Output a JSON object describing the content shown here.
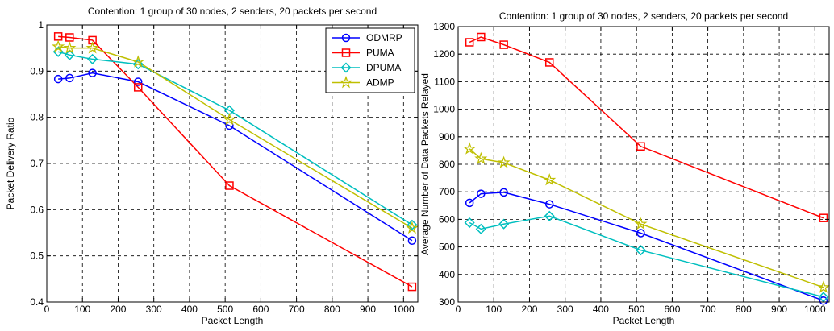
{
  "chart_data": [
    {
      "type": "line",
      "title": "Contention: 1 group of 30 nodes, 2 senders, 20 packets per second",
      "xlabel": "Packet Length",
      "ylabel": "Packet Delivery Ratio",
      "xlim": [
        0,
        1040
      ],
      "ylim": [
        0.4,
        1.0
      ],
      "xticks": [
        0,
        100,
        200,
        300,
        400,
        500,
        600,
        700,
        800,
        900,
        1000
      ],
      "yticks": [
        0.4,
        0.5,
        0.6,
        0.7,
        0.8,
        0.9,
        1.0
      ],
      "ytick_labels": [
        "0.4",
        "0.5",
        "0.6",
        "0.7",
        "0.8",
        "0.9",
        "1"
      ],
      "grid": true,
      "legend": "top-right",
      "x": [
        32,
        64,
        128,
        256,
        512,
        1024
      ],
      "series": [
        {
          "name": "ODMRP",
          "color": "#0000ff",
          "marker": "circle",
          "values": [
            0.883,
            0.885,
            0.896,
            0.877,
            0.782,
            0.533
          ]
        },
        {
          "name": "PUMA",
          "color": "#ff0000",
          "marker": "square",
          "values": [
            0.975,
            0.973,
            0.967,
            0.865,
            0.652,
            0.433
          ]
        },
        {
          "name": "DPUMA",
          "color": "#00bfbf",
          "marker": "diamond",
          "values": [
            0.942,
            0.935,
            0.926,
            0.915,
            0.815,
            0.567
          ]
        },
        {
          "name": "ADMP",
          "color": "#bfbf00",
          "marker": "star",
          "values": [
            0.953,
            0.95,
            0.95,
            0.92,
            0.795,
            0.56
          ]
        }
      ]
    },
    {
      "type": "line",
      "title": "Contention: 1 group of 30 nodes, 2 senders, 20 packets per second",
      "xlabel": "Packet Length",
      "ylabel": "Average Number of Data Packets Relayed",
      "xlim": [
        0,
        1040
      ],
      "ylim": [
        300,
        1300
      ],
      "xticks": [
        0,
        100,
        200,
        300,
        400,
        500,
        600,
        700,
        800,
        900,
        1000
      ],
      "yticks": [
        300,
        400,
        500,
        600,
        700,
        800,
        900,
        1000,
        1100,
        1200,
        1300
      ],
      "ytick_labels": [
        "300",
        "400",
        "500",
        "600",
        "700",
        "800",
        "900",
        "1000",
        "1100",
        "1200",
        "1300"
      ],
      "grid": true,
      "x": [
        32,
        64,
        128,
        256,
        512,
        1024
      ],
      "series": [
        {
          "name": "ODMRP",
          "color": "#0000ff",
          "marker": "circle",
          "values": [
            660,
            693,
            698,
            655,
            550,
            305
          ]
        },
        {
          "name": "PUMA",
          "color": "#ff0000",
          "marker": "square",
          "values": [
            1243,
            1262,
            1234,
            1170,
            865,
            605
          ]
        },
        {
          "name": "DPUMA",
          "color": "#00bfbf",
          "marker": "diamond",
          "values": [
            588,
            565,
            583,
            612,
            488,
            318
          ]
        },
        {
          "name": "ADMP",
          "color": "#bfbf00",
          "marker": "star",
          "values": [
            856,
            820,
            806,
            743,
            583,
            353
          ]
        }
      ]
    }
  ]
}
